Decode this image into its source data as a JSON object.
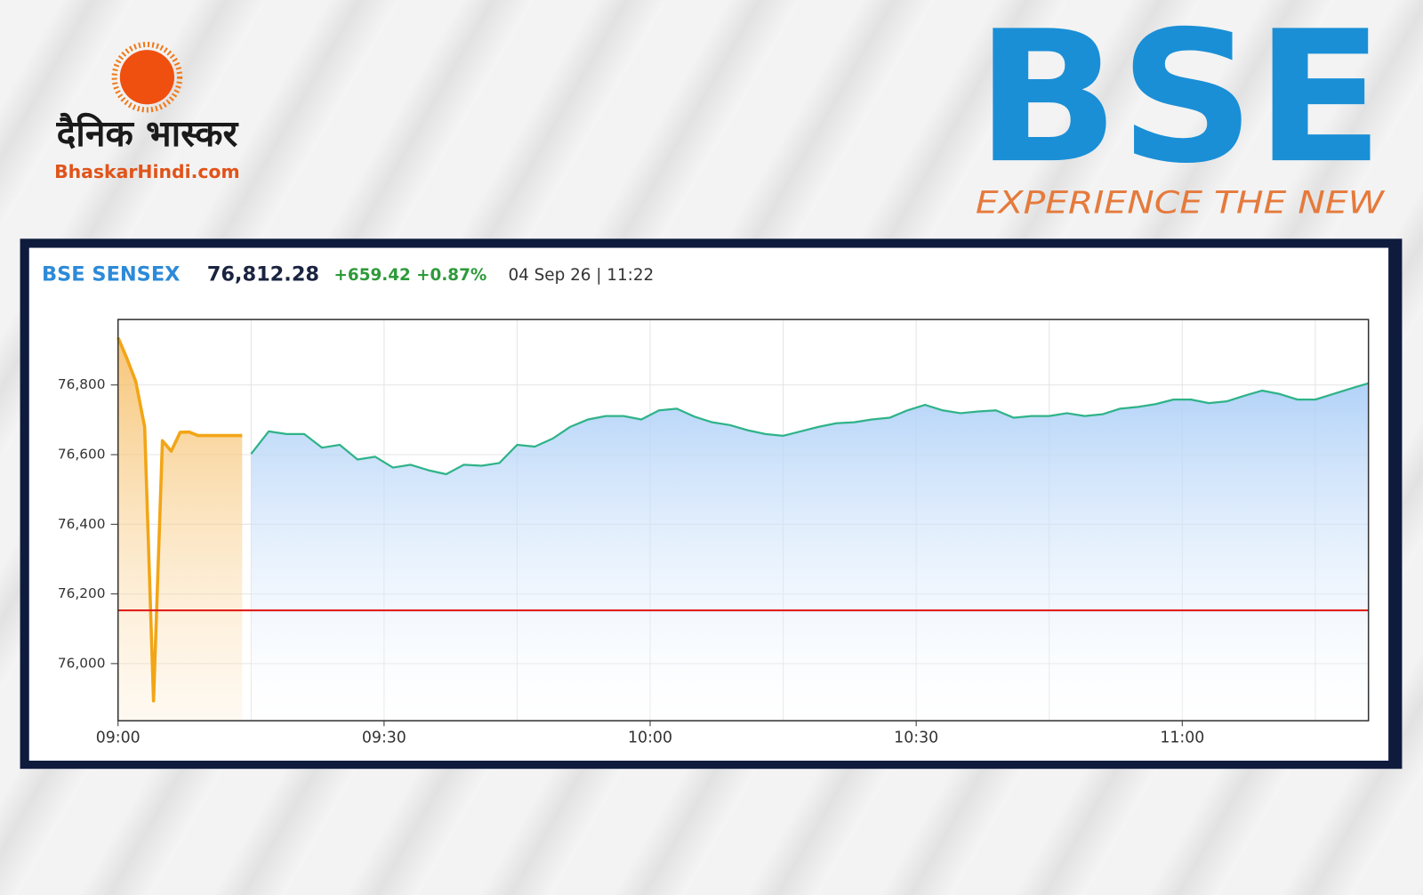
{
  "branding": {
    "publisher_name": "दैनिक भास्कर",
    "publisher_site": "BhaskarHindi.com",
    "exchange_logo": "BSE",
    "exchange_tagline": "EXPERIENCE THE NEW"
  },
  "chart_data": {
    "type": "line",
    "index_name": "BSE SENSEX",
    "last_value": "76,812.28",
    "change": "+659.42 +0.87%",
    "timestamp": "04 Sep 26 | 11:22",
    "xlim": [
      "09:00",
      "11:21"
    ],
    "xticks": [
      "09:00",
      "09:30",
      "10:00",
      "10:30",
      "11:00"
    ],
    "xgrid_minor": [
      "09:15",
      "09:45",
      "10:15",
      "10:45",
      "11:15"
    ],
    "ylim": [
      75836,
      76988
    ],
    "yticks": [
      {
        "value": 76000,
        "label": "76,000"
      },
      {
        "value": 76200,
        "label": "76,200"
      },
      {
        "value": 76400,
        "label": "76,400"
      },
      {
        "value": 76600,
        "label": "76,600"
      },
      {
        "value": 76800,
        "label": "76,800"
      }
    ],
    "grid": true,
    "reference_line": {
      "value": 76152.86,
      "color": "#e0201c"
    },
    "series": [
      {
        "color": "#f2a516",
        "x": [
          "09:00",
          "09:01",
          "09:02",
          "09:03",
          "09:04",
          "09:05",
          "09:06",
          "09:07",
          "09:08",
          "09:09",
          "09:10",
          "09:11",
          "09:12",
          "09:13",
          "09:14"
        ],
        "values": [
          76936,
          76876,
          76810,
          76680,
          75893,
          76640,
          76610,
          76664,
          76665,
          76655,
          76655,
          76655,
          76655,
          76655,
          76655
        ]
      },
      {
        "color": "#2fb389",
        "x": [
          "09:15",
          "09:17",
          "09:19",
          "09:21",
          "09:23",
          "09:25",
          "09:27",
          "09:29",
          "09:31",
          "09:33",
          "09:35",
          "09:37",
          "09:39",
          "09:41",
          "09:43",
          "09:45",
          "09:47",
          "09:49",
          "09:51",
          "09:53",
          "09:55",
          "09:57",
          "09:59",
          "10:01",
          "10:03",
          "10:05",
          "10:07",
          "10:09",
          "10:11",
          "10:13",
          "10:15",
          "10:17",
          "10:19",
          "10:21",
          "10:23",
          "10:25",
          "10:27",
          "10:29",
          "10:31",
          "10:33",
          "10:35",
          "10:37",
          "10:39",
          "10:41",
          "10:43",
          "10:45",
          "10:47",
          "10:49",
          "10:51",
          "10:53",
          "10:55",
          "10:57",
          "10:59",
          "11:01",
          "11:03",
          "11:05",
          "11:07",
          "11:09",
          "11:11",
          "11:13",
          "11:15",
          "11:17",
          "11:19",
          "11:21"
        ],
        "values": [
          76602,
          76667,
          76659,
          76659,
          76620,
          76628,
          76586,
          76594,
          76563,
          76571,
          76555,
          76544,
          76571,
          76568,
          76576,
          76628,
          76623,
          76646,
          76680,
          76701,
          76711,
          76711,
          76701,
          76727,
          76732,
          76709,
          76693,
          76685,
          76670,
          76659,
          76654,
          76667,
          76680,
          76690,
          76693,
          76701,
          76706,
          76727,
          76743,
          76727,
          76719,
          76724,
          76727,
          76706,
          76711,
          76711,
          76719,
          76711,
          76716,
          76732,
          76737,
          76745,
          76758,
          76758,
          76748,
          76753,
          76769,
          76784,
          76774,
          76758,
          76758,
          76774,
          76790,
          76805
        ]
      }
    ]
  }
}
